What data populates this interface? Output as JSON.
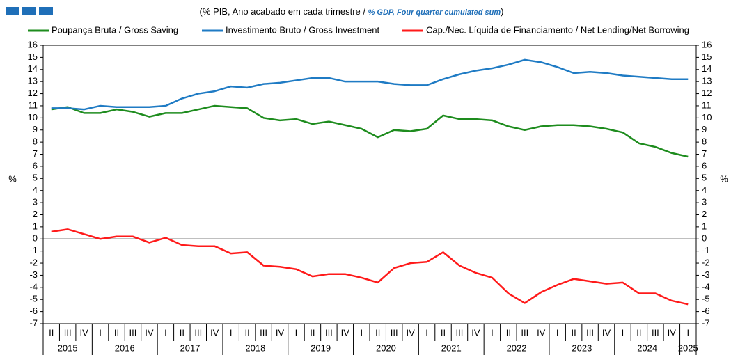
{
  "chart_data": {
    "type": "line",
    "subtitle": [
      "(% PIB, Ano acabado em cada trimestre / ",
      "% GDP, Four quarter cumulated sum",
      ")"
    ],
    "ylabel": "%",
    "y2label": "%",
    "categories": [
      "II",
      "III",
      "IV",
      "I",
      "II",
      "III",
      "IV",
      "I",
      "II",
      "III",
      "IV",
      "I",
      "II",
      "III",
      "IV",
      "I",
      "II",
      "III",
      "IV",
      "I",
      "II",
      "III",
      "IV",
      "I",
      "II",
      "III",
      "IV",
      "I",
      "II",
      "III",
      "IV",
      "I",
      "II",
      "III",
      "IV",
      "I",
      "II",
      "III",
      "IV",
      "I"
    ],
    "years": [
      "2015",
      "2016",
      "2017",
      "2018",
      "2019",
      "2020",
      "2021",
      "2022",
      "2023",
      "2024",
      "2025"
    ],
    "series": [
      {
        "name": "Poupança Bruta / Gross Saving",
        "color": "#1e8c1e",
        "values": [
          10.7,
          10.9,
          10.4,
          10.4,
          10.7,
          10.5,
          10.1,
          10.4,
          10.4,
          10.7,
          11.0,
          10.9,
          10.8,
          10.0,
          9.8,
          9.9,
          9.5,
          9.7,
          9.4,
          9.1,
          8.4,
          9.0,
          8.9,
          9.1,
          10.2,
          9.9,
          9.9,
          9.8,
          9.3,
          9.0,
          9.3,
          9.4,
          9.4,
          9.3,
          9.1,
          8.8,
          7.9,
          7.6,
          7.1,
          6.8
        ]
      },
      {
        "name": "Investimento Bruto / Gross Investment",
        "color": "#1f7bc4",
        "values": [
          10.8,
          10.8,
          10.7,
          11.0,
          10.9,
          10.9,
          10.9,
          11.0,
          11.6,
          12.0,
          12.2,
          12.6,
          12.5,
          12.8,
          12.9,
          13.1,
          13.3,
          13.3,
          13.0,
          13.0,
          13.0,
          12.8,
          12.7,
          12.7,
          13.2,
          13.6,
          13.9,
          14.1,
          14.4,
          14.8,
          14.6,
          14.2,
          13.7,
          13.8,
          13.7,
          13.5,
          13.4,
          13.3,
          13.2,
          13.2
        ]
      },
      {
        "name": "Cap./Nec. Líquida de Financiamento / Net Lending/Net Borrowing",
        "color": "#ff1a1a",
        "values": [
          0.6,
          0.8,
          0.4,
          0.0,
          0.2,
          0.2,
          -0.3,
          0.1,
          -0.5,
          -0.6,
          -0.6,
          -1.2,
          -1.1,
          -2.2,
          -2.3,
          -2.5,
          -3.1,
          -2.9,
          -2.9,
          -3.2,
          -3.6,
          -2.4,
          -2.0,
          -1.9,
          -1.1,
          -2.2,
          -2.8,
          -3.2,
          -4.5,
          -5.3,
          -4.4,
          -3.8,
          -3.3,
          -3.5,
          -3.7,
          -3.6,
          -4.5,
          -4.5,
          -5.1,
          -5.4
        ]
      }
    ],
    "ylim": [
      -7,
      16
    ],
    "yticks": [
      -7,
      -6,
      -5,
      -4,
      -3,
      -2,
      -1,
      0,
      1,
      2,
      3,
      4,
      5,
      6,
      7,
      8,
      9,
      10,
      11,
      12,
      13,
      14,
      15,
      16
    ]
  }
}
